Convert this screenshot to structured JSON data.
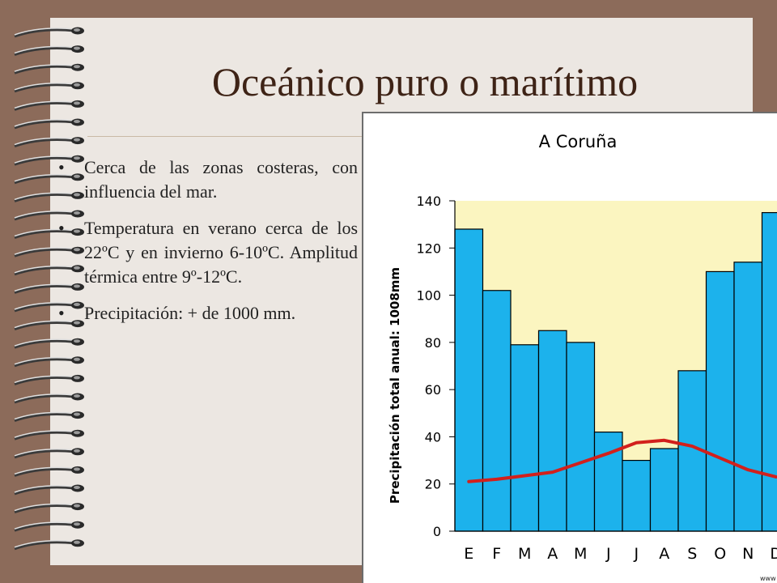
{
  "slide": {
    "title": "Oceánico puro o marítimo",
    "bullets": [
      "Cerca de las zonas costeras, con influencia del mar.",
      "Temperatura en verano cerca de los 22ºC y en invierno 6-10ºC. Amplitud térmica entre 9º-12ºC.",
      "Precipitación: + de 1000 mm."
    ],
    "bullet_glyph": "•",
    "watermark": "www"
  },
  "colors": {
    "background": "#8c6b5a",
    "paper": "#ece7e2",
    "title": "#3e2316",
    "bar_fill": "#1cb2ec",
    "plot_bg": "#fbf5c0",
    "temp_line": "#d2201c"
  },
  "chart_data": {
    "type": "bar",
    "title": "A Coruña",
    "ylabel": "Precipitación total anual: 1008mm",
    "xlabel": "",
    "categories": [
      "E",
      "F",
      "M",
      "A",
      "M",
      "J",
      "J",
      "A",
      "S",
      "O",
      "N",
      "D"
    ],
    "ylim": [
      0,
      140
    ],
    "yticks": [
      0,
      20,
      40,
      60,
      80,
      100,
      120,
      140
    ],
    "series": [
      {
        "type": "bar",
        "values": [
          128,
          102,
          79,
          85,
          80,
          42,
          30,
          35,
          68,
          110,
          114,
          135
        ]
      },
      {
        "type": "line",
        "values": [
          21,
          22,
          23.5,
          25,
          29,
          33,
          37.5,
          38.5,
          36,
          31,
          26,
          23
        ]
      }
    ],
    "grid": false,
    "legend": "none"
  }
}
